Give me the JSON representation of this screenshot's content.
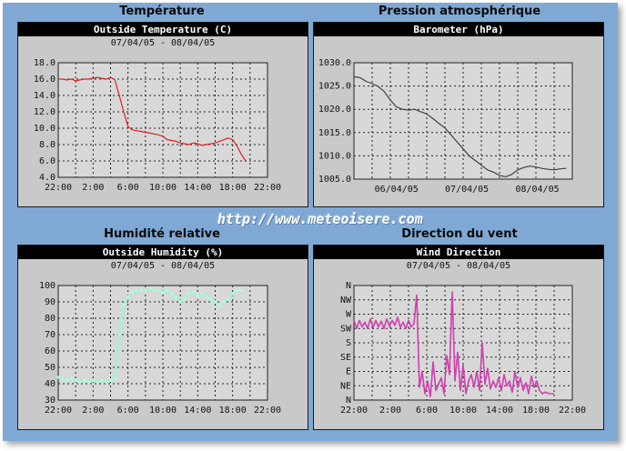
{
  "sections": {
    "temperature": "Température",
    "pressure": "Pression atmosphérique",
    "humidity": "Humidité relative",
    "wind": "Direction du vent"
  },
  "watermark": "http://www.meteoisere.com",
  "colors": {
    "background": "#7fa9d4",
    "panel": "#c9c9c9",
    "temperature": "#e02020",
    "pressure": "#404040",
    "humidity": "#a8f0d0",
    "wind": "#d040b0"
  },
  "chart_data": [
    {
      "type": "line",
      "title": "Outside Temperature (C)",
      "subtitle": "07/04/05 - 08/04/05",
      "x_ticks": [
        "22:00",
        "2:00",
        "6:00",
        "10:00",
        "14:00",
        "18:00",
        "22:00"
      ],
      "xlim": [
        0,
        24
      ],
      "ylim": [
        4.0,
        18.0
      ],
      "y_ticks": [
        "4.0",
        "6.0",
        "8.0",
        "10.0",
        "12.0",
        "14.0",
        "16.0",
        "18.0"
      ],
      "grid": true,
      "series": [
        {
          "x": [
            0,
            0.5,
            1,
            1.5,
            2,
            2.5,
            3,
            3.5,
            4,
            4.5,
            5,
            5.5,
            6,
            6.5,
            7,
            7.5,
            8,
            8.5,
            9,
            9.5,
            10,
            10.5,
            11,
            11.5,
            12,
            12.5,
            13,
            13.5,
            14,
            14.5,
            15,
            15.5,
            16,
            16.5,
            17,
            17.5,
            18,
            18.5,
            19,
            19.5,
            20,
            20.5,
            21,
            21.5
          ],
          "values": [
            16.0,
            16.0,
            15.9,
            16.0,
            15.8,
            15.9,
            16.0,
            16.0,
            16.1,
            16.2,
            16.1,
            16.0,
            16.2,
            15.9,
            14.0,
            12.0,
            10.2,
            9.8,
            9.7,
            9.6,
            9.5,
            9.4,
            9.3,
            9.2,
            9.0,
            8.6,
            8.5,
            8.4,
            8.2,
            8.1,
            8.0,
            8.2,
            8.1,
            7.9,
            8.0,
            8.1,
            8.2,
            8.4,
            8.6,
            8.8,
            8.6,
            7.8,
            6.8,
            6.0
          ]
        }
      ]
    },
    {
      "type": "line",
      "title": "Barometer (hPa)",
      "subtitle": "",
      "x_ticks": [
        "06/04/05",
        "07/04/05",
        "08/04/05"
      ],
      "xlim": [
        0,
        72
      ],
      "ylim": [
        1005.0,
        1030.0
      ],
      "y_ticks": [
        "1005.0",
        "1010.0",
        "1015.0",
        "1020.0",
        "1025.0",
        "1030.0"
      ],
      "grid": true,
      "series": [
        {
          "x": [
            0,
            2,
            4,
            6,
            8,
            10,
            12,
            14,
            16,
            18,
            20,
            22,
            24,
            26,
            28,
            30,
            32,
            34,
            36,
            38,
            40,
            42,
            44,
            46,
            48,
            50,
            52,
            54,
            56,
            58,
            60,
            62,
            64,
            66,
            68,
            70
          ],
          "values": [
            1027.0,
            1026.8,
            1026.0,
            1025.5,
            1024.9,
            1023.8,
            1022.0,
            1020.5,
            1020.0,
            1019.8,
            1020.0,
            1019.5,
            1019.0,
            1018.0,
            1017.0,
            1016.0,
            1014.5,
            1013.0,
            1011.5,
            1010.0,
            1009.0,
            1008.0,
            1007.0,
            1006.5,
            1005.8,
            1005.5,
            1006.0,
            1007.0,
            1007.5,
            1007.8,
            1007.6,
            1007.3,
            1007.1,
            1007.0,
            1007.2,
            1007.3
          ]
        }
      ]
    },
    {
      "type": "line",
      "title": "Outside Humidity (%)",
      "subtitle": "07/04/05 - 08/04/05",
      "x_ticks": [
        "22:00",
        "2:00",
        "6:00",
        "10:00",
        "14:00",
        "18:00",
        "22:00"
      ],
      "xlim": [
        0,
        24
      ],
      "ylim": [
        30,
        100
      ],
      "y_ticks": [
        "30",
        "40",
        "50",
        "60",
        "70",
        "80",
        "90",
        "100"
      ],
      "grid": true,
      "series": [
        {
          "x": [
            0,
            0.5,
            1,
            1.5,
            2,
            2.5,
            3,
            3.5,
            4,
            4.5,
            5,
            5.5,
            6,
            6.5,
            7,
            7.5,
            8,
            8.5,
            9,
            9.5,
            10,
            10.5,
            11,
            11.5,
            12,
            12.5,
            13,
            13.5,
            14,
            14.5,
            15,
            15.5,
            16,
            16.5,
            17,
            17.5,
            18,
            18.5,
            19,
            19.5,
            20,
            20.5,
            21
          ],
          "values": [
            44,
            43,
            42,
            43,
            42,
            41,
            42,
            41,
            42,
            41,
            42,
            41,
            42,
            43,
            70,
            88,
            93,
            96,
            97,
            97,
            97,
            98,
            97,
            97,
            96,
            97,
            95,
            93,
            90,
            92,
            95,
            96,
            94,
            95,
            93,
            92,
            90,
            88,
            90,
            92,
            95,
            97,
            97
          ]
        }
      ]
    },
    {
      "type": "line",
      "title": "Wind Direction",
      "subtitle": "07/04/05 - 08/04/05",
      "x_ticks": [
        "22:00",
        "2:00",
        "6:00",
        "10:00",
        "14:00",
        "18:00",
        "22:00"
      ],
      "xlim": [
        0,
        24
      ],
      "y_ticks": [
        "N",
        "NE",
        "E",
        "SE",
        "S",
        "SW",
        "W",
        "NW",
        "N"
      ],
      "ylim": [
        0,
        360
      ],
      "grid": true,
      "series": [
        {
          "x": [
            0,
            0.3,
            0.6,
            0.9,
            1.2,
            1.5,
            1.8,
            2.1,
            2.4,
            2.7,
            3.0,
            3.3,
            3.6,
            3.9,
            4.2,
            4.5,
            4.8,
            5.1,
            5.4,
            5.7,
            6.0,
            6.3,
            6.6,
            6.9,
            7.2,
            7.5,
            7.8,
            8.1,
            8.4,
            8.7,
            9.0,
            9.3,
            9.6,
            9.9,
            10.2,
            10.5,
            10.8,
            11.1,
            11.4,
            11.7,
            12.0,
            12.3,
            12.6,
            12.9,
            13.2,
            13.5,
            13.8,
            14.1,
            14.4,
            14.7,
            15.0,
            15.3,
            15.6,
            15.9,
            16.2,
            16.5,
            16.8,
            17.1,
            17.4,
            17.7,
            18.0,
            18.3,
            18.6,
            18.9,
            19.2,
            19.5,
            19.8,
            20.1,
            20.4,
            20.7,
            21.0,
            21.5,
            22.0
          ],
          "values": [
            250,
            225,
            250,
            230,
            245,
            225,
            255,
            228,
            250,
            230,
            248,
            225,
            255,
            232,
            250,
            235,
            260,
            228,
            245,
            225,
            250,
            230,
            240,
            330,
            40,
            90,
            20,
            60,
            10,
            120,
            30,
            50,
            70,
            20,
            140,
            80,
            340,
            60,
            150,
            30,
            110,
            20,
            60,
            80,
            40,
            90,
            30,
            180,
            50,
            100,
            35,
            60,
            40,
            70,
            30,
            80,
            45,
            60,
            25,
            90,
            40,
            70,
            30,
            55,
            20,
            75,
            40,
            60,
            30,
            20,
            25,
            20,
            20
          ]
        }
      ]
    }
  ]
}
